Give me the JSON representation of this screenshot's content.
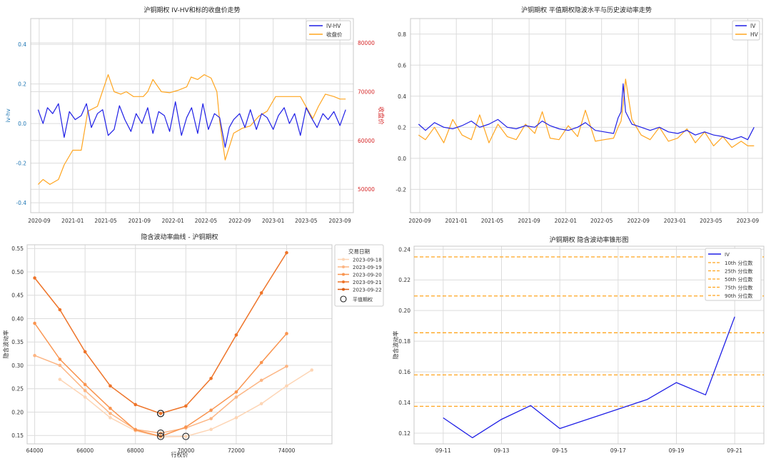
{
  "colors": {
    "blue": "#1f1fe6",
    "orange": "#ffa51f",
    "grid": "#dcdcdc",
    "spine": "#c8c8c8",
    "left_axis_blue": "#1f77b4",
    "right_axis_red": "#d62728",
    "iv_curve_shades": [
      "#fdd5b5",
      "#fcb583",
      "#f9944f",
      "#ee7429",
      "#db5d12"
    ]
  },
  "chart_data": [
    {
      "id": "p1",
      "type": "line",
      "title": "沪铜期权 IV-HV和标的收盘价走势",
      "ylabel_left": "iv-hv",
      "ylabel_right": "收盘价",
      "ylim_left": [
        -0.45,
        0.53
      ],
      "ylim_right": [
        45200,
        85000
      ],
      "left_ticks": [
        "0.4",
        "0.2",
        "0.0",
        "-0.2",
        "-0.4"
      ],
      "right_ticks": [
        "80000",
        "70000",
        "60000",
        "50000"
      ],
      "x_ticks": [
        "2020-09",
        "2021-01",
        "2021-05",
        "2021-09",
        "2022-01",
        "2022-05",
        "2022-09",
        "2023-01",
        "2023-05",
        "2023-09"
      ],
      "x_range": [
        "2020-08-01",
        "2023-10-20"
      ],
      "grid": true,
      "legend": "top-right",
      "series": [
        {
          "name": "IV-HV",
          "axis": "left",
          "x": [
            "2020-08-28",
            "2020-09-15",
            "2020-10-01",
            "2020-10-20",
            "2020-11-10",
            "2020-12-01",
            "2020-12-20",
            "2021-01-10",
            "2021-02-01",
            "2021-02-20",
            "2021-03-10",
            "2021-04-01",
            "2021-04-20",
            "2021-05-10",
            "2021-06-01",
            "2021-06-20",
            "2021-07-10",
            "2021-08-01",
            "2021-08-20",
            "2021-09-10",
            "2021-10-01",
            "2021-10-20",
            "2021-11-10",
            "2021-12-01",
            "2021-12-20",
            "2022-01-10",
            "2022-02-01",
            "2022-02-20",
            "2022-03-10",
            "2022-04-01",
            "2022-04-20",
            "2022-05-10",
            "2022-06-01",
            "2022-06-20",
            "2022-07-10",
            "2022-07-25",
            "2022-08-10",
            "2022-09-01",
            "2022-09-20",
            "2022-10-10",
            "2022-11-01",
            "2022-11-20",
            "2022-12-10",
            "2023-01-01",
            "2023-01-20",
            "2023-02-10",
            "2023-03-01",
            "2023-03-20",
            "2023-04-10",
            "2023-05-01",
            "2023-05-20",
            "2023-06-10",
            "2023-07-01",
            "2023-07-20",
            "2023-08-10",
            "2023-09-01",
            "2023-09-22"
          ],
          "y": [
            0.07,
            0.0,
            0.08,
            0.05,
            0.1,
            -0.07,
            0.06,
            0.02,
            0.04,
            0.1,
            -0.02,
            0.05,
            0.07,
            -0.06,
            -0.03,
            0.09,
            0.02,
            -0.04,
            0.05,
            0.0,
            0.08,
            -0.05,
            0.06,
            0.04,
            -0.04,
            0.11,
            -0.06,
            0.03,
            0.08,
            -0.05,
            0.1,
            -0.03,
            0.05,
            0.03,
            -0.12,
            -0.02,
            0.02,
            0.05,
            -0.02,
            0.07,
            -0.03,
            0.05,
            0.03,
            -0.03,
            0.04,
            0.08,
            0.0,
            0.05,
            -0.06,
            0.08,
            0.03,
            -0.02,
            0.05,
            0.02,
            0.06,
            -0.01,
            0.07
          ]
        },
        {
          "name": "收盘价",
          "axis": "right",
          "x": [
            "2020-08-28",
            "2020-09-15",
            "2020-10-10",
            "2020-11-10",
            "2020-12-01",
            "2021-01-01",
            "2021-02-01",
            "2021-02-25",
            "2021-04-01",
            "2021-05-10",
            "2021-06-01",
            "2021-06-25",
            "2021-07-15",
            "2021-08-10",
            "2021-09-15",
            "2021-10-01",
            "2021-10-20",
            "2021-11-20",
            "2021-12-20",
            "2022-01-20",
            "2022-02-20",
            "2022-03-08",
            "2022-04-01",
            "2022-04-25",
            "2022-05-20",
            "2022-06-10",
            "2022-06-20",
            "2022-07-10",
            "2022-08-10",
            "2022-09-10",
            "2022-10-10",
            "2022-11-10",
            "2022-12-10",
            "2023-01-10",
            "2023-02-10",
            "2023-03-10",
            "2023-04-10",
            "2023-05-10",
            "2023-05-25",
            "2023-06-15",
            "2023-07-10",
            "2023-08-10",
            "2023-09-01",
            "2023-09-22"
          ],
          "y": [
            51000,
            52000,
            51000,
            52000,
            55000,
            58000,
            58000,
            66000,
            67000,
            73500,
            70000,
            69500,
            70000,
            69000,
            69000,
            70000,
            72500,
            70000,
            69800,
            70300,
            71000,
            73000,
            72500,
            73500,
            72800,
            70000,
            64000,
            56000,
            61500,
            62500,
            63000,
            65000,
            66000,
            69000,
            69000,
            69000,
            69000,
            66000,
            64500,
            67000,
            69500,
            69000,
            68500,
            68500
          ]
        }
      ]
    },
    {
      "id": "p2",
      "type": "line",
      "title": "沪铜期权 平值期权隐波水平与历史波动率走势",
      "ylim": [
        -0.35,
        0.9
      ],
      "y_ticks": [
        "0.8",
        "0.6",
        "0.4",
        "0.2",
        "0.0",
        "-0.2"
      ],
      "x_ticks": [
        "2020-09",
        "2021-01",
        "2021-05",
        "2021-09",
        "2022-01",
        "2022-05",
        "2022-09",
        "2023-01",
        "2023-05",
        "2023-09"
      ],
      "x_range": [
        "2020-08-01",
        "2023-10-20"
      ],
      "grid": true,
      "legend": "top-right",
      "series": [
        {
          "name": "IV",
          "x": [
            "2020-08-28",
            "2020-09-20",
            "2020-10-20",
            "2020-11-20",
            "2020-12-20",
            "2021-01-20",
            "2021-02-20",
            "2021-03-20",
            "2021-04-20",
            "2021-05-20",
            "2021-06-20",
            "2021-07-20",
            "2021-08-20",
            "2021-09-20",
            "2021-10-15",
            "2021-11-10",
            "2021-12-10",
            "2022-01-10",
            "2022-02-10",
            "2022-03-08",
            "2022-04-10",
            "2022-05-10",
            "2022-06-10",
            "2022-06-25",
            "2022-07-05",
            "2022-07-12",
            "2022-07-20",
            "2022-08-10",
            "2022-09-10",
            "2022-10-10",
            "2022-11-10",
            "2022-12-10",
            "2023-01-10",
            "2023-02-10",
            "2023-03-10",
            "2023-04-10",
            "2023-05-10",
            "2023-06-10",
            "2023-07-10",
            "2023-08-10",
            "2023-09-01",
            "2023-09-22"
          ],
          "y": [
            0.22,
            0.18,
            0.23,
            0.2,
            0.19,
            0.21,
            0.24,
            0.2,
            0.22,
            0.25,
            0.2,
            0.19,
            0.21,
            0.2,
            0.24,
            0.21,
            0.19,
            0.18,
            0.2,
            0.23,
            0.18,
            0.17,
            0.16,
            0.26,
            0.3,
            0.48,
            0.3,
            0.22,
            0.2,
            0.18,
            0.2,
            0.17,
            0.16,
            0.18,
            0.15,
            0.17,
            0.15,
            0.14,
            0.12,
            0.14,
            0.12,
            0.2
          ]
        },
        {
          "name": "HV",
          "x": [
            "2020-08-28",
            "2020-09-20",
            "2020-10-20",
            "2020-11-20",
            "2020-12-20",
            "2021-01-20",
            "2021-02-20",
            "2021-03-20",
            "2021-04-20",
            "2021-05-20",
            "2021-06-20",
            "2021-07-20",
            "2021-08-20",
            "2021-09-20",
            "2021-10-15",
            "2021-11-10",
            "2021-12-10",
            "2022-01-10",
            "2022-02-10",
            "2022-03-08",
            "2022-04-10",
            "2022-05-10",
            "2022-06-10",
            "2022-06-25",
            "2022-07-05",
            "2022-07-12",
            "2022-07-20",
            "2022-08-10",
            "2022-09-10",
            "2022-10-10",
            "2022-11-10",
            "2022-12-10",
            "2023-01-10",
            "2023-02-10",
            "2023-03-10",
            "2023-04-10",
            "2023-05-10",
            "2023-06-10",
            "2023-07-10",
            "2023-08-10",
            "2023-09-01",
            "2023-09-22"
          ],
          "y": [
            0.15,
            0.12,
            0.2,
            0.1,
            0.25,
            0.15,
            0.12,
            0.28,
            0.1,
            0.22,
            0.14,
            0.12,
            0.22,
            0.16,
            0.3,
            0.13,
            0.12,
            0.21,
            0.14,
            0.31,
            0.11,
            0.12,
            0.13,
            0.2,
            0.24,
            0.35,
            0.51,
            0.25,
            0.15,
            0.12,
            0.2,
            0.11,
            0.13,
            0.19,
            0.1,
            0.17,
            0.08,
            0.14,
            0.07,
            0.11,
            0.08,
            0.08
          ]
        }
      ]
    },
    {
      "id": "p3",
      "type": "line",
      "title": "隐含波动率曲线 - 沪铜期权",
      "xlabel": "行权价",
      "ylabel": "隐含波动率",
      "xlim": [
        63700,
        75800
      ],
      "ylim": [
        0.132,
        0.558
      ],
      "x_ticks": [
        64000,
        66000,
        68000,
        70000,
        72000,
        74000
      ],
      "y_ticks": [
        0.15,
        0.2,
        0.25,
        0.3,
        0.35,
        0.4,
        0.45,
        0.5,
        0.55
      ],
      "grid": true,
      "legend_title": "交易日期",
      "legend": "right",
      "atm_label": "平值期权",
      "series": [
        {
          "name": "2023-09-18",
          "x": [
            65000,
            66000,
            67000,
            68000,
            69000,
            70000,
            71000,
            72000,
            73000,
            74000,
            75000
          ],
          "y": [
            0.27,
            0.232,
            0.188,
            0.16,
            0.147,
            0.148,
            0.163,
            0.188,
            0.218,
            0.256,
            0.29
          ],
          "atm": [
            70000,
            0.148
          ]
        },
        {
          "name": "2023-09-19",
          "x": [
            64000,
            65000,
            66000,
            67000,
            68000,
            69000,
            70000,
            71000,
            72000,
            73000,
            74000
          ],
          "y": [
            0.321,
            0.3,
            0.246,
            0.197,
            0.163,
            0.155,
            0.166,
            0.186,
            0.232,
            0.268,
            0.298
          ],
          "atm": [
            69000,
            0.155
          ]
        },
        {
          "name": "2023-09-20",
          "x": [
            64000,
            65000,
            66000,
            67000,
            68000,
            69000,
            70000,
            71000,
            72000,
            73000,
            74000
          ],
          "y": [
            0.39,
            0.313,
            0.259,
            0.208,
            0.162,
            0.148,
            0.168,
            0.204,
            0.243,
            0.306,
            0.368
          ],
          "atm": [
            69000,
            0.148
          ]
        },
        {
          "name": "2023-09-21",
          "x": [
            64000,
            65000,
            66000,
            67000,
            68000,
            69000,
            70000,
            71000,
            72000,
            73000,
            74000
          ],
          "y": [
            0.487,
            0.419,
            0.329,
            0.256,
            0.216,
            0.197,
            0.213,
            0.272,
            0.365,
            0.455,
            0.541
          ],
          "atm": [
            69000,
            0.197
          ]
        },
        {
          "name": "2023-09-22",
          "x": [],
          "y": [],
          "atm": [
            69000,
            0.197
          ]
        }
      ]
    },
    {
      "id": "p4",
      "type": "line",
      "title": "沪铜期权 隐含波动率锥形图",
      "ylabel": "隐含波动率",
      "xlim": [
        "2023-09-10",
        "2023-09-22"
      ],
      "ylim": [
        0.113,
        0.242
      ],
      "x_ticks": [
        "09-11",
        "09-13",
        "09-15",
        "09-17",
        "09-19",
        "09-21"
      ],
      "y_ticks": [
        0.12,
        0.14,
        0.16,
        0.18,
        0.2,
        0.22,
        0.24
      ],
      "grid": true,
      "legend": "top-right",
      "series": [
        {
          "name": "IV",
          "x": [
            "2023-09-11",
            "2023-09-12",
            "2023-09-13",
            "2023-09-14",
            "2023-09-15",
            "2023-09-18",
            "2023-09-19",
            "2023-09-20",
            "2023-09-21"
          ],
          "y": [
            0.13,
            0.117,
            0.129,
            0.138,
            0.123,
            0.142,
            0.153,
            0.145,
            0.196
          ]
        }
      ],
      "percentile_lines": [
        {
          "name": "10th 分位数",
          "value": 0.1375
        },
        {
          "name": "25th 分位数",
          "value": 0.158
        },
        {
          "name": "50th 分位数",
          "value": 0.1855
        },
        {
          "name": "75th 分位数",
          "value": 0.2095
        },
        {
          "name": "90th 分位数",
          "value": 0.235
        }
      ]
    }
  ]
}
